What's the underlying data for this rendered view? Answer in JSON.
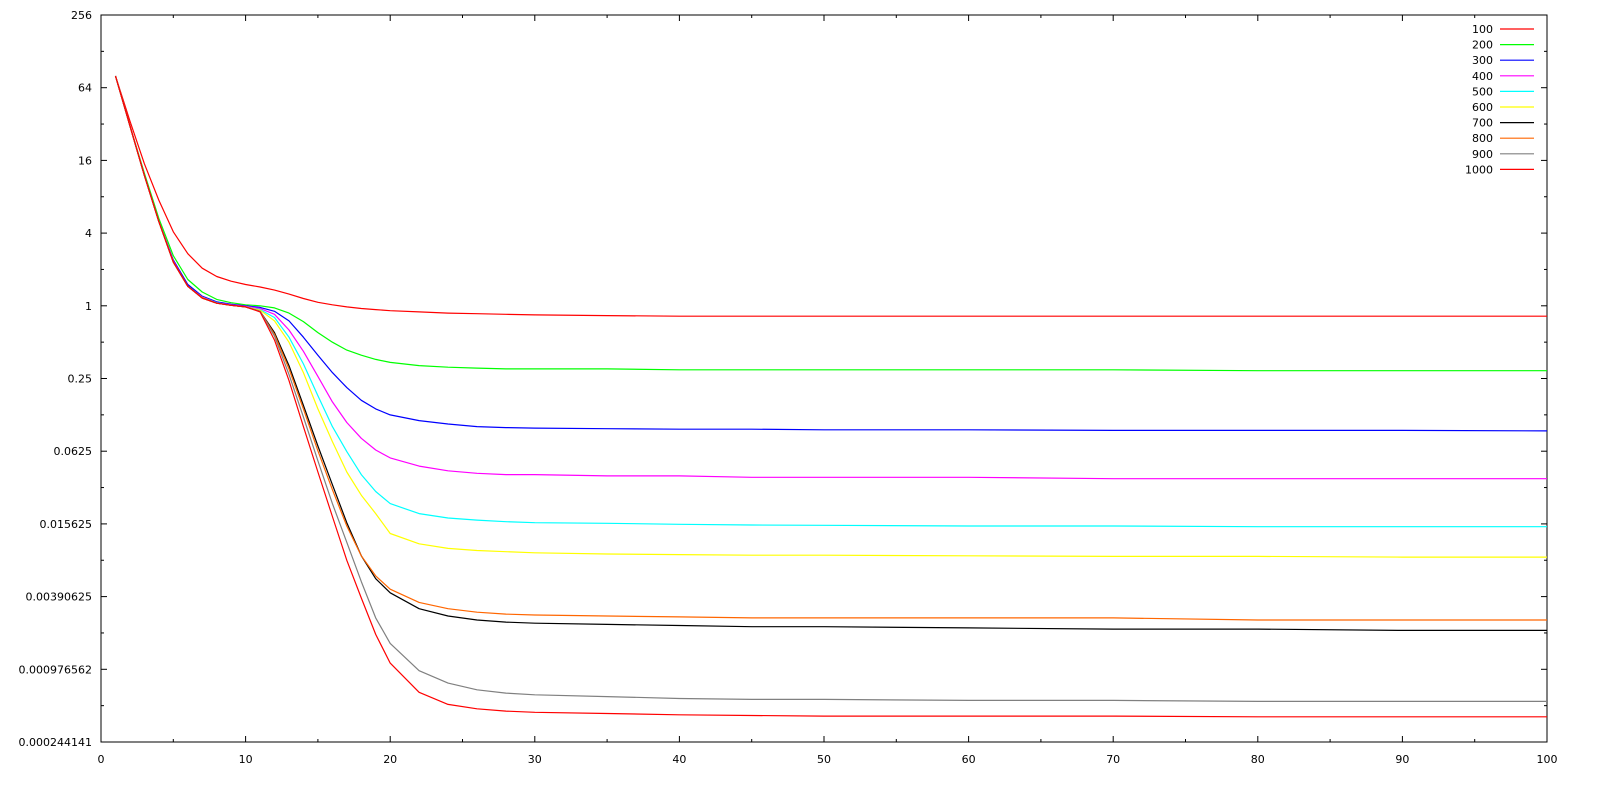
{
  "chart_data": {
    "type": "line",
    "title": "",
    "xlabel": "",
    "ylabel": "",
    "x_scale": "linear",
    "y_scale": "log2",
    "xlim": [
      0,
      100
    ],
    "ylim": [
      0.000244141,
      256
    ],
    "x_ticks": [
      "0",
      "10",
      "20",
      "30",
      "40",
      "50",
      "60",
      "70",
      "80",
      "90",
      "100"
    ],
    "y_ticks": [
      "256",
      "64",
      "16",
      "4",
      "1",
      "0.25",
      "0.0625",
      "0.015625",
      "0.00390625",
      "0.000976562",
      "0.000244141"
    ],
    "grid": false,
    "legend_position": "top-right",
    "x": [
      1,
      2,
      3,
      4,
      5,
      6,
      7,
      8,
      9,
      10,
      11,
      12,
      13,
      14,
      15,
      16,
      17,
      18,
      19,
      20,
      22,
      24,
      26,
      28,
      30,
      35,
      40,
      45,
      50,
      60,
      70,
      80,
      90,
      100
    ],
    "series": [
      {
        "name": "100",
        "color": "#ff0000",
        "values": [
          80,
          34,
          15,
          7.5,
          4.1,
          2.7,
          2.05,
          1.75,
          1.6,
          1.5,
          1.43,
          1.35,
          1.25,
          1.15,
          1.07,
          1.02,
          0.98,
          0.95,
          0.93,
          0.91,
          0.89,
          0.87,
          0.86,
          0.85,
          0.84,
          0.83,
          0.82,
          0.82,
          0.82,
          0.82,
          0.82,
          0.82,
          0.82,
          0.82
        ]
      },
      {
        "name": "200",
        "color": "#00ff00",
        "values": [
          80,
          31,
          12.5,
          5.3,
          2.6,
          1.65,
          1.3,
          1.13,
          1.06,
          1.02,
          1.0,
          0.96,
          0.87,
          0.74,
          0.6,
          0.5,
          0.43,
          0.39,
          0.36,
          0.34,
          0.32,
          0.31,
          0.305,
          0.3,
          0.3,
          0.3,
          0.295,
          0.295,
          0.295,
          0.295,
          0.295,
          0.29,
          0.29,
          0.29
        ]
      },
      {
        "name": "300",
        "color": "#0000ff",
        "values": [
          80,
          31,
          12,
          5,
          2.4,
          1.5,
          1.2,
          1.08,
          1.03,
          1.0,
          0.97,
          0.9,
          0.75,
          0.55,
          0.39,
          0.28,
          0.21,
          0.165,
          0.14,
          0.125,
          0.112,
          0.105,
          0.1,
          0.098,
          0.097,
          0.096,
          0.095,
          0.095,
          0.094,
          0.094,
          0.093,
          0.093,
          0.093,
          0.092
        ]
      },
      {
        "name": "400",
        "color": "#ff00ff",
        "values": [
          80,
          31,
          12,
          5,
          2.35,
          1.45,
          1.18,
          1.06,
          1.02,
          0.99,
          0.95,
          0.85,
          0.63,
          0.42,
          0.26,
          0.16,
          0.108,
          0.08,
          0.064,
          0.055,
          0.047,
          0.043,
          0.041,
          0.04,
          0.04,
          0.039,
          0.039,
          0.038,
          0.038,
          0.038,
          0.037,
          0.037,
          0.037,
          0.037
        ]
      },
      {
        "name": "500",
        "color": "#00ffff",
        "values": [
          80,
          31,
          12,
          5,
          2.3,
          1.45,
          1.17,
          1.06,
          1.01,
          0.98,
          0.93,
          0.8,
          0.55,
          0.33,
          0.18,
          0.1,
          0.062,
          0.04,
          0.029,
          0.023,
          0.019,
          0.0175,
          0.0168,
          0.0163,
          0.016,
          0.0158,
          0.0155,
          0.0153,
          0.0152,
          0.015,
          0.015,
          0.0148,
          0.0148,
          0.0148
        ]
      },
      {
        "name": "600",
        "color": "#ffff00",
        "values": [
          80,
          31,
          12,
          5,
          2.3,
          1.45,
          1.17,
          1.05,
          1.01,
          0.98,
          0.92,
          0.75,
          0.5,
          0.28,
          0.14,
          0.075,
          0.042,
          0.027,
          0.019,
          0.013,
          0.0107,
          0.0098,
          0.0094,
          0.0092,
          0.009,
          0.0088,
          0.0087,
          0.0086,
          0.0086,
          0.0085,
          0.0084,
          0.0084,
          0.0083,
          0.0083
        ]
      },
      {
        "name": "700",
        "color": "#000000",
        "values": [
          80,
          31,
          12,
          5,
          2.3,
          1.45,
          1.16,
          1.05,
          1.01,
          0.98,
          0.9,
          0.6,
          0.32,
          0.15,
          0.069,
          0.033,
          0.016,
          0.0085,
          0.0055,
          0.0042,
          0.0031,
          0.0027,
          0.0025,
          0.0024,
          0.00235,
          0.0023,
          0.00225,
          0.0022,
          0.0022,
          0.00215,
          0.0021,
          0.0021,
          0.00205,
          0.00205
        ]
      },
      {
        "name": "800",
        "color": "#ff6600",
        "values": [
          80,
          31,
          12,
          5,
          2.3,
          1.45,
          1.16,
          1.05,
          1.01,
          0.98,
          0.9,
          0.58,
          0.3,
          0.14,
          0.063,
          0.03,
          0.015,
          0.0085,
          0.0058,
          0.0045,
          0.0035,
          0.0031,
          0.0029,
          0.0028,
          0.00275,
          0.0027,
          0.00265,
          0.0026,
          0.0026,
          0.0026,
          0.0026,
          0.0025,
          0.0025,
          0.0025
        ]
      },
      {
        "name": "900",
        "color": "#808080",
        "values": [
          80,
          31,
          12,
          5,
          2.3,
          1.45,
          1.16,
          1.05,
          1.01,
          0.98,
          0.9,
          0.56,
          0.27,
          0.12,
          0.052,
          0.023,
          0.011,
          0.0052,
          0.0026,
          0.0016,
          0.00095,
          0.00075,
          0.00066,
          0.00062,
          0.0006,
          0.00058,
          0.00056,
          0.00055,
          0.00055,
          0.00054,
          0.00054,
          0.00053,
          0.00053,
          0.00053
        ]
      },
      {
        "name": "1000",
        "color": "#ff0000",
        "values": [
          80,
          31,
          12,
          5,
          2.3,
          1.45,
          1.16,
          1.05,
          1.01,
          0.98,
          0.89,
          0.52,
          0.24,
          0.1,
          0.042,
          0.018,
          0.0078,
          0.0038,
          0.0019,
          0.0011,
          0.00063,
          0.0005,
          0.00046,
          0.00044,
          0.00043,
          0.00042,
          0.00041,
          0.000405,
          0.0004,
          0.0004,
          0.0004,
          0.000395,
          0.000395,
          0.000395
        ]
      }
    ]
  }
}
